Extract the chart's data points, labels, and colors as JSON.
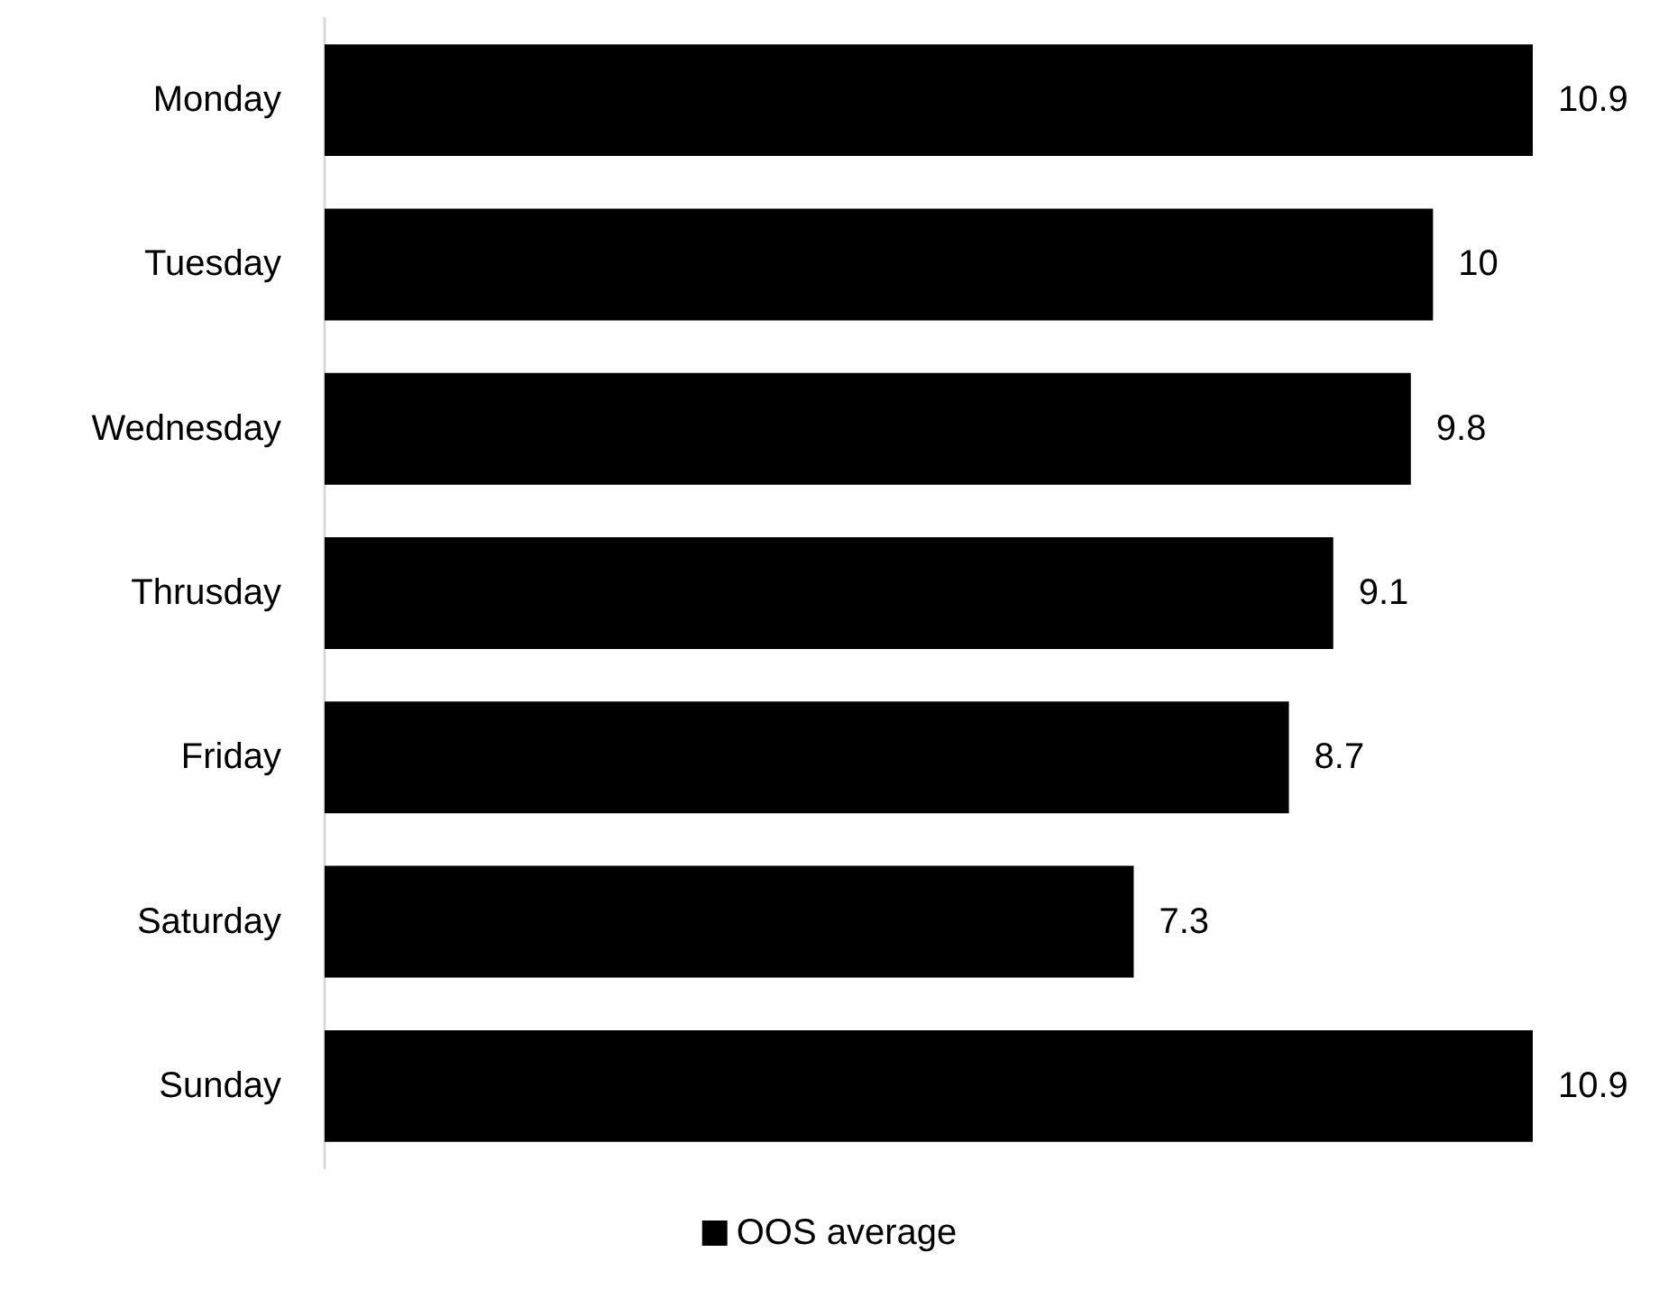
{
  "chart_data": {
    "type": "bar",
    "orientation": "horizontal",
    "categories": [
      "Monday",
      "Tuesday",
      "Wednesday",
      "Thrusday",
      "Friday",
      "Saturday",
      "Sunday"
    ],
    "series": [
      {
        "name": "OOS average",
        "color": "#000000",
        "values": [
          10.9,
          10,
          9.8,
          9.1,
          8.7,
          7.3,
          10.9
        ]
      }
    ],
    "data_labels": true,
    "legend": "bottom"
  }
}
